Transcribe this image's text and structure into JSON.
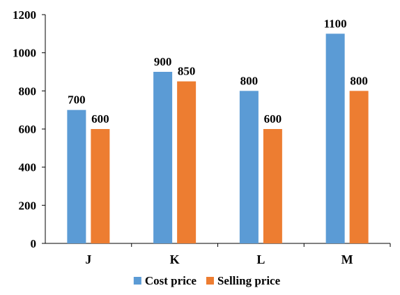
{
  "chart_data": {
    "type": "bar",
    "categories": [
      "J",
      "K",
      "L",
      "M"
    ],
    "series": [
      {
        "name": "Cost price",
        "values": [
          700,
          900,
          800,
          1100
        ],
        "color": "#5b9bd5"
      },
      {
        "name": "Selling price",
        "values": [
          600,
          850,
          600,
          800
        ],
        "color": "#ed7d31"
      }
    ],
    "title": "",
    "xlabel": "",
    "ylabel": "",
    "ylim": [
      0,
      1200
    ],
    "yticks": [
      0,
      200,
      400,
      600,
      800,
      1000,
      1200
    ],
    "data_labels": true,
    "grid": false,
    "legend_position": "bottom"
  }
}
